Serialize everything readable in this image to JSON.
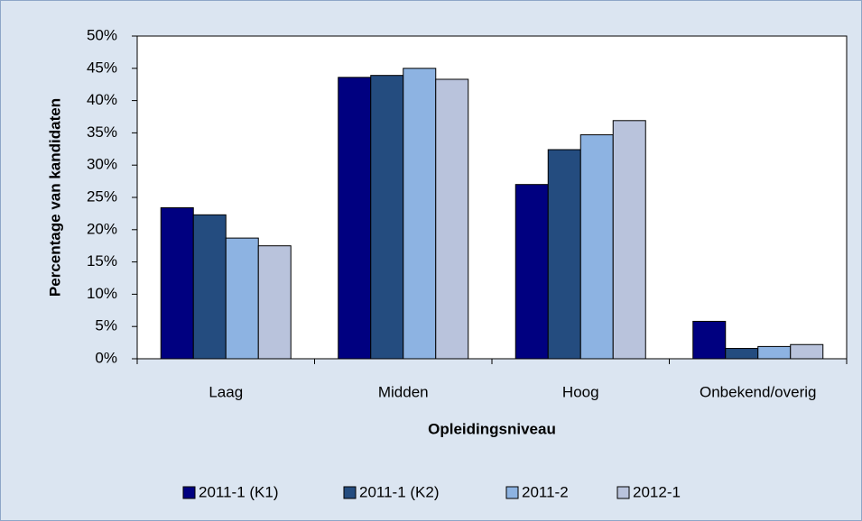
{
  "chart_data": {
    "type": "bar",
    "x_label": "Opleidingsniveau",
    "y_label": "Percentage van kandidaten",
    "categories": [
      "Laag",
      "Midden",
      "Hoog",
      "Onbekend/overig"
    ],
    "series": [
      {
        "name": "2011-1 (K1)",
        "color": "#000080",
        "values": [
          23.4,
          43.6,
          27.0,
          5.8
        ]
      },
      {
        "name": "2011-1 (K2)",
        "color": "#244c7f",
        "values": [
          22.3,
          43.9,
          32.4,
          1.6
        ]
      },
      {
        "name": "2011-2",
        "color": "#8db3e2",
        "values": [
          18.7,
          45.0,
          34.7,
          1.9
        ]
      },
      {
        "name": "2012-1",
        "color": "#b9c3dc",
        "values": [
          17.5,
          43.3,
          36.9,
          2.2
        ]
      }
    ],
    "ylim": [
      0,
      50
    ],
    "yticks": [
      {
        "value": 0,
        "label": "0%"
      },
      {
        "value": 5,
        "label": "5%"
      },
      {
        "value": 10,
        "label": "10%"
      },
      {
        "value": 15,
        "label": "15%"
      },
      {
        "value": 20,
        "label": "20%"
      },
      {
        "value": 25,
        "label": "25%"
      },
      {
        "value": 30,
        "label": "30%"
      },
      {
        "value": 35,
        "label": "35%"
      },
      {
        "value": 40,
        "label": "40%"
      },
      {
        "value": 45,
        "label": "45%"
      },
      {
        "value": 50,
        "label": "50%"
      }
    ],
    "grid": false,
    "legend": "bottom"
  }
}
